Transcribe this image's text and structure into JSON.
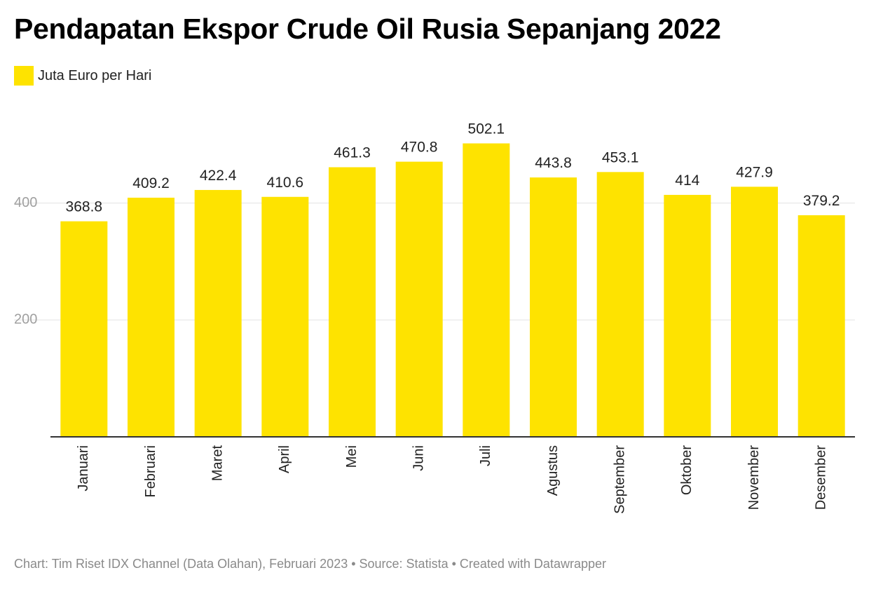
{
  "title": "Pendapatan Ekspor Crude Oil Rusia Sepanjang 2022",
  "footer": "Chart: Tim Riset IDX Channel (Data Olahan), Februari 2023 • Source: Statista • Created with Datawrapper",
  "colors": {
    "bar": "#FEE300",
    "grid": "#e2e2e2",
    "axis": "#333333",
    "tick_label": "#a0a0a0",
    "value_label": "#222222"
  },
  "chart_data": {
    "type": "bar",
    "title": "Pendapatan Ekspor Crude Oil Rusia Sepanjang 2022",
    "xlabel": "",
    "ylabel": "",
    "ylim": [
      0,
      550
    ],
    "yticks": [
      200,
      400
    ],
    "grid": true,
    "legend_position": "top-left",
    "categories": [
      "Januari",
      "Februari",
      "Maret",
      "April",
      "Mei",
      "Juni",
      "Juli",
      "Agustus",
      "September",
      "Oktober",
      "November",
      "Desember"
    ],
    "series": [
      {
        "name": "Juta Euro per Hari",
        "values": [
          368.8,
          409.2,
          422.4,
          410.6,
          461.3,
          470.8,
          502.1,
          443.8,
          453.1,
          414,
          427.9,
          379.2
        ]
      }
    ]
  }
}
